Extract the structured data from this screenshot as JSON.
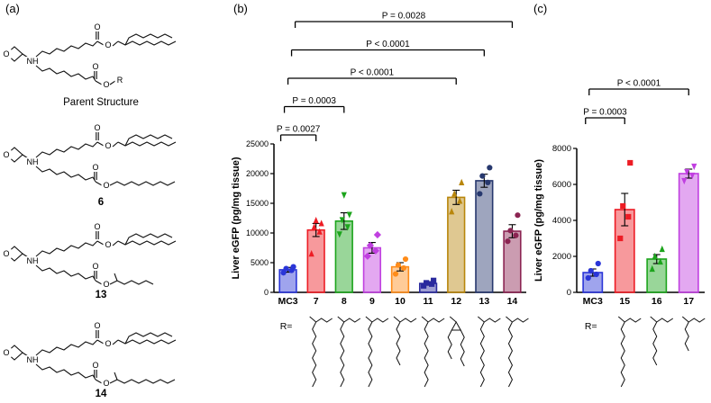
{
  "figure": {
    "panel_a_label": "(a)",
    "panel_b_label": "(b)",
    "panel_c_label": "(c)"
  },
  "panel_a": {
    "atom_labels": {
      "O": "O",
      "NH": "NH",
      "R": "R"
    },
    "structures": [
      {
        "caption": "Parent Structure",
        "variant": "parent"
      },
      {
        "caption": "6",
        "variant": "linear"
      },
      {
        "caption": "13",
        "variant": "methyl-short"
      },
      {
        "caption": "14",
        "variant": "methyl-long"
      }
    ]
  },
  "chart_data": [
    {
      "id": "b",
      "type": "bar",
      "title": "",
      "ylabel": "Liver eGFP (pg/mg tissue)",
      "ylim": [
        0,
        25000
      ],
      "yticks": [
        0,
        5000,
        10000,
        15000,
        20000,
        25000
      ],
      "categories": [
        "MC3",
        "7",
        "8",
        "9",
        "10",
        "11",
        "12",
        "13",
        "14"
      ],
      "values": [
        3800,
        10500,
        12000,
        7500,
        4300,
        1500,
        16000,
        18800,
        10300
      ],
      "errors": [
        400,
        1100,
        1400,
        900,
        700,
        300,
        1200,
        1100,
        1100
      ],
      "points": [
        [
          3300,
          3700,
          4000,
          4300
        ],
        [
          6500,
          10200,
          11000,
          11600,
          12100
        ],
        [
          9800,
          11000,
          12200,
          13100,
          16400
        ],
        [
          6100,
          7000,
          7900,
          9700
        ],
        [
          3100,
          4100,
          4600,
          5600
        ],
        [
          1100,
          1400,
          1600,
          2000
        ],
        [
          13600,
          15400,
          16600,
          18500
        ],
        [
          16600,
          18500,
          19600,
          21000
        ],
        [
          8600,
          9600,
          10400,
          13000
        ]
      ],
      "colors": [
        "#2a35d8",
        "#ed1c24",
        "#1ca41c",
        "#c03fe0",
        "#ff8c1a",
        "#2a2a9e",
        "#b8860b",
        "#27386e",
        "#8b2452"
      ],
      "markers": [
        "circle",
        "triangle-up",
        "triangle-down",
        "diamond",
        "circle",
        "square",
        "triangle-up",
        "circle",
        "circle"
      ],
      "significance": [
        {
          "from": "MC3",
          "to": "7",
          "i0": 0,
          "i1": 1,
          "label": "P = 0.0027"
        },
        {
          "from": "MC3",
          "to": "8",
          "i0": 0,
          "i1": 2,
          "label": "P = 0.0003"
        },
        {
          "from": "MC3",
          "to": "12",
          "i0": 0,
          "i1": 6,
          "label": "P < 0.0001"
        },
        {
          "from": "MC3",
          "to": "13",
          "i0": 0,
          "i1": 7,
          "label": "P < 0.0001"
        },
        {
          "from": "MC3",
          "to": "14",
          "i0": 0,
          "i1": 8,
          "label": "P = 0.0028"
        }
      ],
      "r_label": "R=",
      "r_groups": [
        "branched-long",
        "branched-long",
        "branched-long",
        "branched-medium",
        "branched-long",
        "cyclopropyl",
        "branched-long",
        "branched-long"
      ]
    },
    {
      "id": "c",
      "type": "bar",
      "title": "",
      "ylabel": "Liver eGFP (pg/mg tissue)",
      "ylim": [
        0,
        8000
      ],
      "yticks": [
        0,
        2000,
        4000,
        6000,
        8000
      ],
      "categories": [
        "MC3",
        "15",
        "16",
        "17"
      ],
      "values": [
        1100,
        4600,
        1850,
        6600
      ],
      "errors": [
        200,
        900,
        250,
        250
      ],
      "points": [
        [
          800,
          1000,
          1200,
          1600
        ],
        [
          3000,
          4200,
          4800,
          7200
        ],
        [
          1300,
          1700,
          2000,
          2400
        ],
        [
          6200,
          6500,
          6700,
          7000
        ]
      ],
      "colors": [
        "#2a35d8",
        "#ed1c24",
        "#1ca41c",
        "#c03fe0"
      ],
      "markers": [
        "circle",
        "square",
        "triangle-up",
        "triangle-down"
      ],
      "significance": [
        {
          "from": "MC3",
          "to": "15",
          "i0": 0,
          "i1": 1,
          "label": "P = 0.0003"
        },
        {
          "from": "MC3",
          "to": "17",
          "i0": 0,
          "i1": 3,
          "label": "P < 0.0001"
        }
      ],
      "r_label": "R=",
      "r_groups": [
        "branched-long",
        "branched-medium",
        "branched-short"
      ]
    }
  ]
}
